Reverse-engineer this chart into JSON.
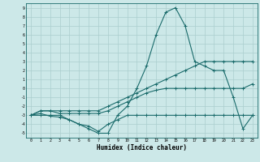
{
  "xlabel": "Humidex (Indice chaleur)",
  "xlim": [
    -0.5,
    23.5
  ],
  "ylim": [
    -5.5,
    9.5
  ],
  "yticks": [
    -5,
    -4,
    -3,
    -2,
    -1,
    0,
    1,
    2,
    3,
    4,
    5,
    6,
    7,
    8,
    9
  ],
  "xticks": [
    0,
    1,
    2,
    3,
    4,
    5,
    6,
    7,
    8,
    9,
    10,
    11,
    12,
    13,
    14,
    15,
    16,
    17,
    18,
    19,
    20,
    21,
    22,
    23
  ],
  "bg_color": "#cce8e8",
  "line_color": "#1a6b6b",
  "grid_color": "#aacece",
  "line1": [
    -3,
    -3,
    -3,
    -3,
    -3.5,
    -4,
    -4.5,
    -5,
    -5,
    -3,
    -2,
    0,
    2.5,
    6,
    8.5,
    9,
    7,
    3,
    2.5,
    2,
    2,
    -1,
    -4.5,
    -3
  ],
  "line2": [
    -3,
    -2.8,
    -3.1,
    -3.2,
    -3.5,
    -4,
    -4.2,
    -4.8,
    -4,
    -3.5,
    -3,
    -3,
    -3,
    -3,
    -3,
    -3,
    -3,
    -3,
    -3,
    -3,
    -3,
    -3,
    -3,
    -3
  ],
  "line3": [
    -3,
    -2.5,
    -2.5,
    -2.5,
    -2.5,
    -2.5,
    -2.5,
    -2.5,
    -2,
    -1.5,
    -1,
    -0.5,
    0,
    0.5,
    1,
    1.5,
    2,
    2.5,
    3,
    3,
    3,
    3,
    3,
    3
  ],
  "line4": [
    -3,
    -2.5,
    -2.5,
    -2.8,
    -2.8,
    -2.8,
    -2.8,
    -2.8,
    -2.5,
    -2,
    -1.5,
    -1,
    -0.5,
    -0.2,
    0,
    0,
    0,
    0,
    0,
    0,
    0,
    0,
    0,
    0.5
  ]
}
